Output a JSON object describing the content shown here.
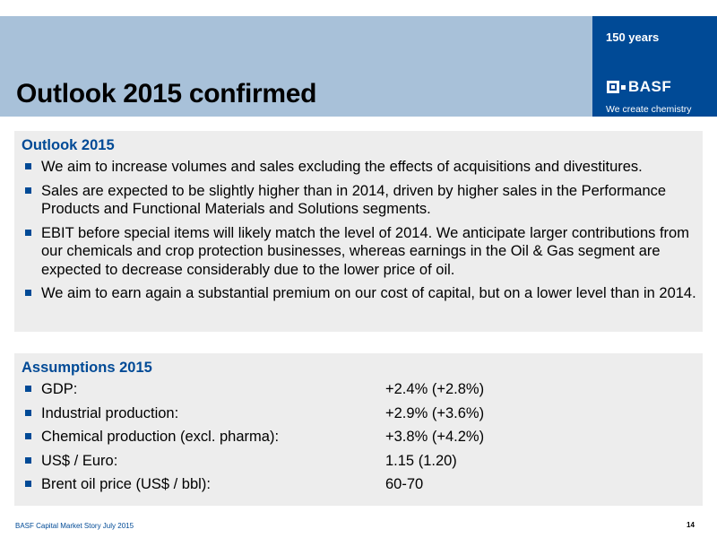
{
  "header": {
    "title": "Outlook 2015 confirmed",
    "logo": {
      "anniversary": "150 years",
      "wordmark": "BASF",
      "slogan": "We create chemistry"
    }
  },
  "outlook": {
    "heading": "Outlook 2015",
    "items": [
      "We aim to increase volumes and sales excluding the effects of acquisitions and divestitures.",
      "Sales are expected to be slightly higher than in 2014, driven by higher sales in the Performance Products and Functional Materials and Solutions segments.",
      "EBIT before special items will likely match the level of 2014. We anticipate larger contributions from our chemicals and crop protection businesses, whereas earnings in the Oil & Gas segment are expected to decrease considerably due to the lower price of oil.",
      "We aim to earn again a substantial premium on our cost of capital, but on a lower level than in 2014."
    ]
  },
  "assumptions": {
    "heading": "Assumptions 2015",
    "rows": [
      {
        "label": "GDP:",
        "value": "+2.4% (+2.8%)"
      },
      {
        "label": "Industrial production:",
        "value": "+2.9% (+3.6%)"
      },
      {
        "label": "Chemical production (excl. pharma):",
        "value": "+3.8% (+4.2%)"
      },
      {
        "label": "US$ / Euro:",
        "value": "1.15 (1.20)"
      },
      {
        "label": "Brent oil price (US$ / bbl):",
        "value": "60-70"
      }
    ]
  },
  "footer": {
    "text": "BASF Capital Market Story July 2015",
    "page": "14"
  },
  "colors": {
    "header_band": "#a8c1d9",
    "brand_blue": "#004a96",
    "panel_bg": "#ededed"
  }
}
